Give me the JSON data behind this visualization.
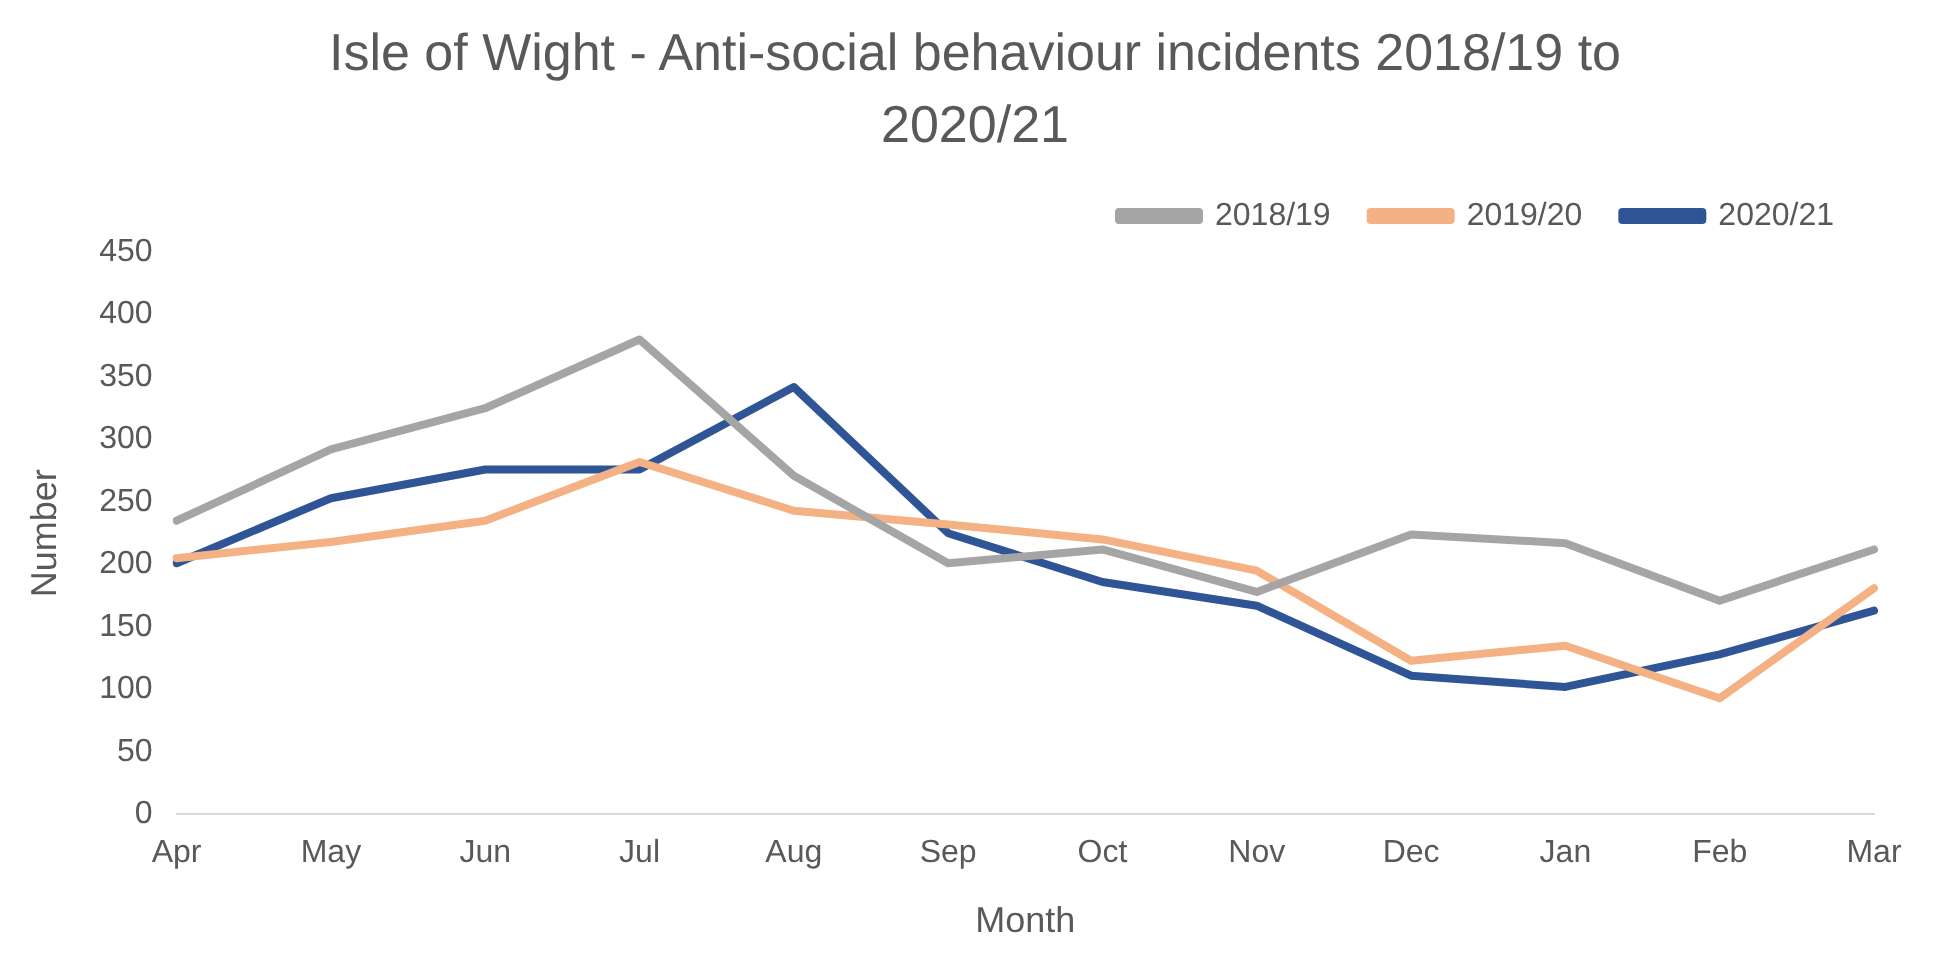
{
  "chart_data": {
    "type": "line",
    "title": "Isle of Wight - Anti-social behaviour incidents 2018/19 to 2020/21",
    "xlabel": "Month",
    "ylabel": "Number",
    "categories": [
      "Apr",
      "May",
      "Jun",
      "Jul",
      "Aug",
      "Sep",
      "Oct",
      "Nov",
      "Dec",
      "Jan",
      "Feb",
      "Mar"
    ],
    "series": [
      {
        "name": "2018/19",
        "color": "#a5a5a5",
        "values": [
          235,
          292,
          325,
          380,
          271,
          201,
          212,
          178,
          224,
          217,
          171,
          212
        ]
      },
      {
        "name": "2019/20",
        "color": "#f4b183",
        "values": [
          205,
          218,
          235,
          282,
          243,
          232,
          220,
          195,
          123,
          135,
          93,
          181
        ]
      },
      {
        "name": "2020/21",
        "color": "#2f5597",
        "values": [
          201,
          253,
          276,
          276,
          342,
          225,
          186,
          167,
          111,
          102,
          128,
          163
        ]
      }
    ],
    "ylim": [
      0,
      450
    ],
    "yticks": [
      0,
      50,
      100,
      150,
      200,
      250,
      300,
      350,
      400,
      450
    ],
    "grid": false,
    "legend": "top right",
    "marker": "none",
    "line_style": "solid"
  }
}
